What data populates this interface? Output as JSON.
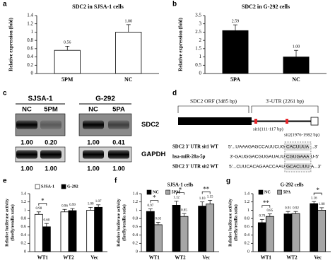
{
  "chart_data": [
    {
      "type": "bar",
      "panel": "a",
      "title": "SDC2 in SJSA-1 cells",
      "ylabel": [
        "Relative expression (fold)"
      ],
      "categories": [
        "5PM",
        "NC"
      ],
      "values": [
        0.56,
        1.0
      ],
      "value_labels": [
        "0.56",
        "1.00"
      ],
      "errors": [
        0.1,
        0.18
      ],
      "color": "#ffffff",
      "ylim": [
        0,
        1.4
      ],
      "yticks": [
        0,
        0.2,
        0.4,
        0.6,
        0.8,
        1,
        1.2,
        1.4
      ]
    },
    {
      "type": "bar",
      "panel": "b",
      "title": "SDC2 in G-292 cells",
      "ylabel": [
        "Relative expression (fold)"
      ],
      "categories": [
        "5PA",
        "NC"
      ],
      "values": [
        2.59,
        1.0
      ],
      "value_labels": [
        "2.59",
        "1.00"
      ],
      "errors": [
        0.35,
        0.4
      ],
      "color": "#000000",
      "ylim": [
        0,
        3.5
      ],
      "yticks": [
        0,
        0.5,
        1,
        1.5,
        2,
        2.5,
        3,
        3.5
      ]
    },
    {
      "type": "bar",
      "panel": "e",
      "ylabel": [
        "Relative luciferase activity",
        "(firefly/renilla ratio)"
      ],
      "categories": [
        "WT1",
        "WT2",
        "Vec"
      ],
      "series": [
        {
          "name": "SJSA-1",
          "color": "#ffffff",
          "values": [
            0.9,
            0.96,
            1.0
          ],
          "value_labels": [
            "0.90",
            "0.96",
            "1.00"
          ],
          "errors": [
            0.06,
            0.06,
            0.07
          ]
        },
        {
          "name": "G-292",
          "color": "#000000",
          "values": [
            0.6,
            0.99,
            1.07
          ],
          "value_labels": [
            "0.60",
            "0.99",
            "1.07"
          ],
          "errors": [
            0.08,
            0.05,
            0.06
          ]
        }
      ],
      "significance": [
        "*",
        null,
        null
      ],
      "ylim": [
        0,
        1.4
      ],
      "yticks": [
        0,
        0.2,
        0.4,
        0.6,
        0.8,
        1,
        1.2,
        1.4
      ]
    },
    {
      "type": "bar",
      "panel": "f",
      "title": "SJSA-1 cells",
      "ylabel": [
        "Relative luciferase activity",
        "(firefly/renilla ratio)"
      ],
      "categories": [
        "WT1",
        "WT2",
        "Vec"
      ],
      "series": [
        {
          "name": "NC",
          "color": "#000000",
          "values": [
            0.97,
            1.12,
            1.1
          ],
          "value_labels": [
            "0.97",
            "1.12",
            "1.10"
          ],
          "errors": [
            0.06,
            0.1,
            0.1
          ]
        },
        {
          "name": "5PM",
          "color": "#a6a6a6",
          "values": [
            0.65,
            0.85,
            1.15
          ],
          "value_labels": [
            "0.65",
            "0.85",
            "1.15"
          ],
          "errors": [
            0.06,
            0.07,
            0.09
          ]
        }
      ],
      "significance": [
        "*",
        "*",
        "**"
      ],
      "ylim": [
        0,
        1.4
      ],
      "yticks": [
        0,
        0.2,
        0.4,
        0.6,
        0.8,
        1,
        1.2,
        1.4
      ]
    },
    {
      "type": "bar",
      "panel": "g",
      "title": "G-292 cells",
      "ylabel": [
        "Relative luciferase activity",
        "(firefly/renilla ratio)"
      ],
      "categories": [
        "WT1",
        "WT2",
        "Vec"
      ],
      "series": [
        {
          "name": "NC",
          "color": "#000000",
          "values": [
            0.7,
            0.91,
            1.16
          ],
          "value_labels": [
            "0.70",
            "0.91",
            "1.16"
          ],
          "errors": [
            0.08,
            0.06,
            0.05
          ]
        },
        {
          "name": "5PA",
          "color": "#a6a6a6",
          "values": [
            0.85,
            0.92,
            1.0
          ],
          "value_labels": [
            "0.85",
            "0.92",
            "1.00"
          ],
          "errors": [
            0.06,
            0.05,
            0.06
          ]
        }
      ],
      "significance": [
        "**",
        null,
        "*"
      ],
      "ylim": [
        0,
        1.4
      ],
      "yticks": [
        0,
        0.2,
        0.4,
        0.6,
        0.8,
        1,
        1.2,
        1.4
      ]
    }
  ],
  "blot": {
    "panel": "c",
    "cell_lines": [
      "SJSA-1",
      "G-292"
    ],
    "lanes": [
      "NC",
      "5PM",
      "NC",
      "5PA"
    ],
    "proteins": [
      {
        "name": "SDC2",
        "levels": [
          "1.00",
          "0.20",
          "1.00",
          "0.41"
        ]
      },
      {
        "name": "GAPDH",
        "levels": [
          "1.00",
          "1.00",
          "1.00",
          "1.00"
        ]
      }
    ]
  },
  "diagram": {
    "panel": "d",
    "orf": "SDC2 ORF (3485 bp)",
    "utr": "3'-UTR (2261 bp)",
    "site1": "sit1(111-117 bp)",
    "site2": "sit2(1976-1982 bp)",
    "rows": [
      {
        "name": "SDC2 3' UTR sit1 WT",
        "prefix": "5'...UAAAGAGCCAUUCUG",
        "seed": "CACUUUA",
        "suffix": "...3'"
      },
      {
        "name": "hsa-miR-20a-5p",
        "prefix": "3'-GAUGGACGUGAUAUU",
        "seed": "CGUGAAA",
        "suffix": "U-5'"
      },
      {
        "name": "SDC2 3' UTR sit2 WT",
        "prefix": "5'...CUUCACAGAACCAAU",
        "seed": "GCACUUU",
        "suffix": "A...3'"
      }
    ]
  }
}
